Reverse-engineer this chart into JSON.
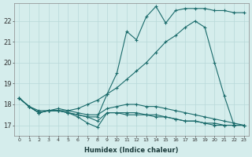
{
  "title": "",
  "xlabel": "Humidex (Indice chaleur)",
  "ylabel": "",
  "background_color": "#d5edec",
  "grid_color": "#b8d8d8",
  "line_color": "#1a6b6b",
  "yticks": [
    17,
    18,
    19,
    20,
    21,
    22
  ],
  "xticks": [
    0,
    1,
    2,
    3,
    4,
    5,
    6,
    7,
    8,
    9,
    10,
    11,
    12,
    13,
    14,
    15,
    16,
    17,
    18,
    19,
    20,
    21,
    22,
    23
  ],
  "xlim": [
    -0.5,
    23.5
  ],
  "ylim": [
    16.5,
    22.85
  ],
  "series": [
    {
      "x": [
        0,
        1,
        2,
        3,
        4,
        5,
        6,
        7,
        8,
        9,
        10,
        11,
        12,
        13,
        14,
        15,
        16,
        17,
        18,
        19,
        20,
        21,
        22,
        23
      ],
      "y": [
        18.3,
        17.9,
        17.6,
        17.7,
        17.7,
        17.6,
        17.5,
        17.4,
        17.2,
        17.6,
        17.6,
        17.6,
        17.6,
        17.5,
        17.5,
        17.4,
        17.3,
        17.2,
        17.2,
        17.1,
        17.1,
        17.0,
        17.0,
        17.0
      ]
    },
    {
      "x": [
        0,
        1,
        2,
        3,
        4,
        5,
        6,
        7,
        8,
        9,
        10,
        11,
        12,
        13,
        14,
        15,
        16,
        17,
        18,
        19,
        20,
        21,
        22,
        23
      ],
      "y": [
        18.3,
        17.9,
        17.7,
        17.7,
        17.8,
        17.7,
        17.6,
        17.5,
        17.5,
        17.8,
        17.9,
        18.0,
        18.0,
        17.9,
        17.9,
        17.8,
        17.7,
        17.6,
        17.5,
        17.4,
        17.3,
        17.2,
        17.1,
        17.0
      ]
    },
    {
      "x": [
        0,
        1,
        2,
        3,
        4,
        5,
        6,
        7,
        8,
        9,
        10,
        11,
        12,
        13,
        14,
        15,
        16,
        17,
        18,
        19,
        20,
        21,
        22,
        23
      ],
      "y": [
        18.3,
        17.9,
        17.6,
        17.7,
        17.7,
        17.6,
        17.4,
        17.1,
        16.9,
        17.6,
        17.6,
        17.5,
        17.5,
        17.5,
        17.4,
        17.4,
        17.3,
        17.2,
        17.2,
        17.1,
        17.0,
        17.0,
        17.0,
        17.0
      ]
    },
    {
      "x": [
        0,
        1,
        2,
        3,
        4,
        5,
        6,
        7,
        8,
        9,
        10,
        11,
        12,
        13,
        14,
        15,
        16,
        17,
        18,
        19,
        20,
        21,
        22,
        23
      ],
      "y": [
        18.3,
        17.9,
        17.6,
        17.7,
        17.7,
        17.7,
        17.8,
        18.0,
        18.2,
        18.5,
        18.8,
        19.2,
        19.6,
        20.0,
        20.5,
        21.0,
        21.3,
        21.7,
        22.0,
        21.7,
        20.0,
        18.4,
        17.0,
        17.0
      ]
    },
    {
      "x": [
        0,
        1,
        2,
        3,
        4,
        5,
        6,
        7,
        8,
        9,
        10,
        11,
        12,
        13,
        14,
        15,
        16,
        17,
        18,
        19,
        20,
        21,
        22,
        23
      ],
      "y": [
        18.3,
        17.9,
        17.6,
        17.7,
        17.7,
        17.6,
        17.5,
        17.4,
        17.4,
        18.5,
        19.5,
        21.5,
        21.1,
        22.2,
        22.7,
        21.9,
        22.5,
        22.6,
        22.6,
        22.6,
        22.5,
        22.5,
        22.4,
        22.4
      ]
    }
  ]
}
